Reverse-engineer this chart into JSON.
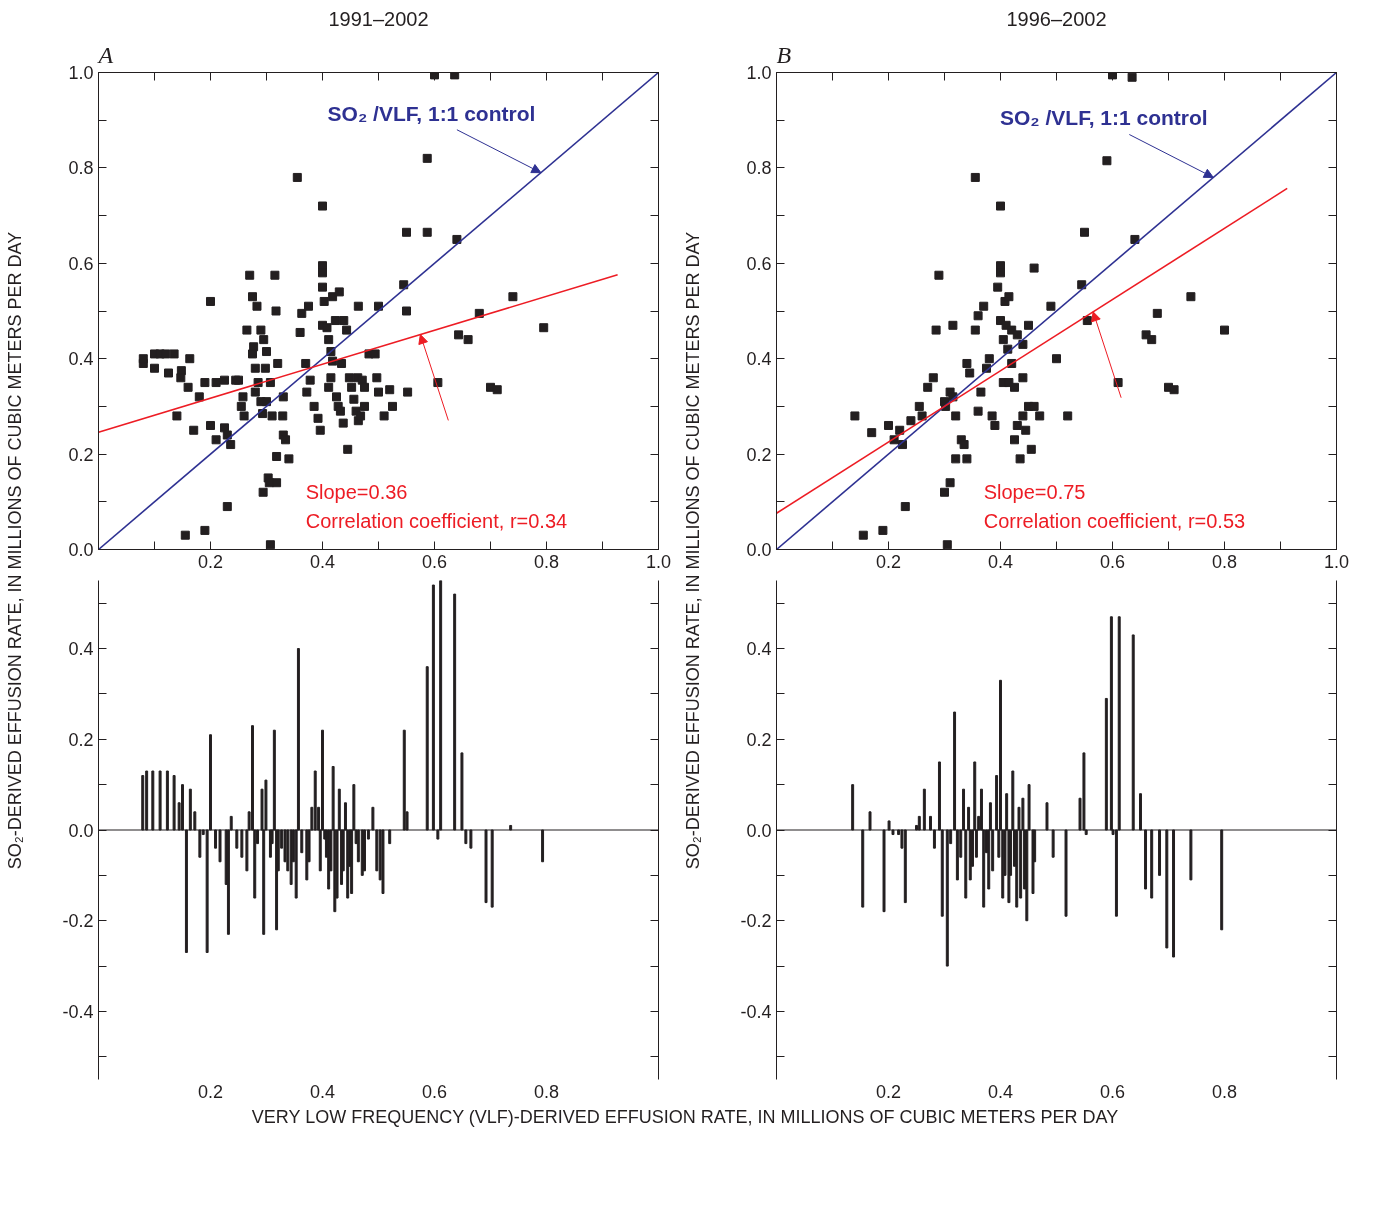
{
  "chart_data": [
    {
      "type": "scatter",
      "title": "1991–2002",
      "ylabel": "SO₂-DERIVED EFFUSION RATE, IN MILLIONS OF CUBIC METERS PER DAY",
      "grid": false,
      "xlim": [
        0,
        1
      ],
      "ylim": [
        0,
        1
      ],
      "xticks": [
        {
          "value": 0.1,
          "label": null
        },
        0.2,
        {
          "value": 0.3,
          "label": null
        },
        0.4,
        {
          "value": 0.5,
          "label": null
        },
        0.6,
        {
          "value": 0.7,
          "label": null
        },
        0.8,
        {
          "value": 0.9,
          "label": null
        },
        {
          "value": 1.0,
          "label": "1.0"
        }
      ],
      "yticks": [
        {
          "value": 0.0,
          "label": "0.0"
        },
        {
          "value": 0.1,
          "label": null
        },
        0.2,
        {
          "value": 0.3,
          "label": null
        },
        0.4,
        {
          "value": 0.5,
          "label": null
        },
        0.6,
        {
          "value": 0.7,
          "label": null
        },
        0.8,
        {
          "value": 0.9,
          "label": null
        },
        {
          "value": 1.0,
          "label": "1.0"
        }
      ],
      "annotations": [
        "A",
        {
          "text": "SO₂ /VLF, 1:1 control",
          "x": 0.79,
          "y": 0.79
        },
        "Slope=0.36",
        "Correlation coefficient, r=0.34"
      ],
      "series": [
        {
          "type": "scatter",
          "marker": "square",
          "color": "#231f20",
          "x": [
            0.08,
            0.08,
            0.1,
            0.11,
            0.12,
            0.135,
            0.1,
            0.125,
            0.148,
            0.163,
            0.147,
            0.16,
            0.14,
            0.17,
            0.18,
            0.19,
            0.2,
            0.2,
            0.21,
            0.21,
            0.225,
            0.225,
            0.23,
            0.236,
            0.23,
            0.19,
            0.155,
            0.245,
            0.25,
            0.255,
            0.26,
            0.258,
            0.265,
            0.27,
            0.275,
            0.277,
            0.275,
            0.28,
            0.285,
            0.28,
            0.29,
            0.293,
            0.283,
            0.29,
            0.295,
            0.3,
            0.298,
            0.307,
            0.3,
            0.31,
            0.315,
            0.317,
            0.32,
            0.33,
            0.329,
            0.33,
            0.334,
            0.34,
            0.318,
            0.294,
            0.303,
            0.305,
            0.318,
            0.307,
            0.355,
            0.36,
            0.363,
            0.375,
            0.37,
            0.378,
            0.372,
            0.385,
            0.392,
            0.396,
            0.4,
            0.4,
            0.4,
            0.4,
            0.403,
            0.4,
            0.408,
            0.411,
            0.415,
            0.418,
            0.415,
            0.411,
            0.425,
            0.428,
            0.432,
            0.437,
            0.445,
            0.418,
            0.423,
            0.43,
            0.438,
            0.443,
            0.434,
            0.448,
            0.452,
            0.456,
            0.46,
            0.464,
            0.464,
            0.463,
            0.471,
            0.475,
            0.475,
            0.468,
            0.483,
            0.494,
            0.497,
            0.5,
            0.52,
            0.51,
            0.55,
            0.552,
            0.525,
            0.587,
            0.606,
            0.587,
            0.643,
            0.66,
            0.68,
            0.7,
            0.712,
            0.74,
            0.795,
            0.6,
            0.636,
            0.64,
            0.55,
            0.545,
            0.5
          ],
          "values": [
            0.39,
            0.4,
            0.41,
            0.41,
            0.41,
            0.41,
            0.38,
            0.37,
            0.375,
            0.4,
            0.36,
            0.34,
            0.28,
            0.25,
            0.32,
            0.35,
            0.52,
            0.26,
            0.23,
            0.35,
            0.355,
            0.255,
            0.24,
            0.22,
            0.09,
            0.04,
            0.03,
            0.355,
            0.355,
            0.3,
            0.28,
            0.32,
            0.46,
            0.575,
            0.53,
            0.425,
            0.41,
            0.38,
            0.35,
            0.33,
            0.31,
            0.285,
            0.51,
            0.46,
            0.44,
            0.415,
            0.38,
            0.35,
            0.31,
            0.28,
            0.575,
            0.5,
            0.39,
            0.32,
            0.28,
            0.24,
            0.23,
            0.19,
            0.195,
            0.12,
            0.15,
            0.14,
            0.14,
            0.01,
            0.78,
            0.455,
            0.495,
            0.51,
            0.39,
            0.355,
            0.33,
            0.3,
            0.275,
            0.25,
            0.72,
            0.595,
            0.58,
            0.55,
            0.52,
            0.47,
            0.465,
            0.44,
            0.415,
            0.395,
            0.36,
            0.34,
            0.32,
            0.3,
            0.29,
            0.265,
            0.21,
            0.53,
            0.48,
            0.54,
            0.48,
            0.46,
            0.39,
            0.36,
            0.34,
            0.315,
            0.29,
            0.27,
            0.51,
            0.36,
            0.355,
            0.34,
            0.3,
            0.28,
            0.41,
            0.41,
            0.36,
            0.33,
            0.335,
            0.28,
            0.5,
            0.33,
            0.3,
            0.665,
            0.35,
            0.82,
            0.45,
            0.44,
            0.495,
            0.34,
            0.335,
            0.53,
            0.465,
            0.995,
            0.995,
            0.65,
            0.665,
            0.555,
            0.51
          ]
        },
        {
          "type": "line",
          "marker": "none",
          "color": "#2e3192",
          "x": [
            0,
            1
          ],
          "values": [
            0,
            1
          ]
        },
        {
          "type": "line",
          "marker": "none",
          "color": "#ed1c24",
          "x": [
            0,
            0.927
          ],
          "values": [
            0.246,
            0.576
          ]
        }
      ]
    },
    {
      "type": "bar",
      "xlabel": "VERY LOW FREQUENCY (VLF)-DERIVED EFFUSION RATE, IN MILLIONS OF CUBIC METERS PER DAY",
      "color": "#231f20",
      "grid": false,
      "xlim": [
        0,
        1
      ],
      "ylim": [
        -0.55,
        0.55
      ],
      "xticks": [
        0.2,
        0.4,
        0.6,
        0.8
      ],
      "yticks": [
        {
          "value": -0.5,
          "label": null
        },
        {
          "value": -0.4,
          "label": "-0.4"
        },
        {
          "value": -0.3,
          "label": null
        },
        {
          "value": -0.2,
          "label": "-0.2"
        },
        {
          "value": -0.1,
          "label": null
        },
        {
          "value": 0.0,
          "label": "0.0"
        },
        {
          "value": 0.1,
          "label": null
        },
        0.2,
        {
          "value": 0.3,
          "label": null
        },
        0.4,
        {
          "value": 0.5,
          "label": null
        }
      ],
      "ref_lines": [
        {
          "axis": "y",
          "value": 0,
          "label": null,
          "color": "#231f20"
        }
      ],
      "x": [
        0.079,
        0.086,
        0.097,
        0.11,
        0.123,
        0.135,
        0.144,
        0.15,
        0.157,
        0.164,
        0.172,
        0.181,
        0.187,
        0.194,
        0.2,
        0.209,
        0.217,
        0.228,
        0.232,
        0.237,
        0.247,
        0.256,
        0.265,
        0.269,
        0.275,
        0.279,
        0.284,
        0.292,
        0.295,
        0.299,
        0.307,
        0.31,
        0.314,
        0.318,
        0.321,
        0.327,
        0.333,
        0.338,
        0.344,
        0.348,
        0.353,
        0.357,
        0.363,
        0.372,
        0.376,
        0.381,
        0.387,
        0.393,
        0.396,
        0.4,
        0.404,
        0.407,
        0.411,
        0.415,
        0.419,
        0.422,
        0.426,
        0.43,
        0.434,
        0.437,
        0.441,
        0.445,
        0.449,
        0.452,
        0.456,
        0.46,
        0.464,
        0.471,
        0.475,
        0.482,
        0.49,
        0.497,
        0.503,
        0.508,
        0.52,
        0.546,
        0.551,
        0.587,
        0.598,
        0.606,
        0.611,
        0.636,
        0.649,
        0.656,
        0.665,
        0.692,
        0.703,
        0.736,
        0.793
      ],
      "values": [
        0.12,
        0.13,
        0.13,
        0.13,
        0.13,
        0.12,
        0.06,
        0.1,
        -0.27,
        0.09,
        0.04,
        -0.06,
        -0.01,
        -0.27,
        0.21,
        -0.04,
        -0.07,
        -0.12,
        -0.23,
        0.03,
        -0.04,
        -0.06,
        -0.09,
        0.04,
        0.23,
        -0.15,
        -0.03,
        0.09,
        -0.23,
        0.11,
        -0.06,
        -0.03,
        0.22,
        -0.22,
        -0.09,
        -0.04,
        -0.07,
        -0.09,
        -0.12,
        -0.07,
        -0.15,
        0.4,
        -0.05,
        -0.11,
        -0.07,
        0.05,
        0.13,
        0.05,
        -0.09,
        0.22,
        -0.02,
        -0.06,
        -0.13,
        -0.09,
        0.14,
        -0.18,
        -0.15,
        0.09,
        -0.12,
        -0.09,
        0.06,
        -0.15,
        -0.08,
        -0.14,
        0.1,
        -0.03,
        -0.07,
        -0.1,
        -0.09,
        -0.02,
        0.05,
        -0.09,
        -0.11,
        -0.14,
        -0.03,
        0.22,
        0.04,
        0.36,
        0.54,
        -0.02,
        0.55,
        0.52,
        0.17,
        -0.03,
        -0.04,
        -0.16,
        -0.17,
        0.01,
        -0.07
      ]
    },
    {
      "type": "scatter",
      "title": "1996–2002",
      "ylabel": "SO₂-DERIVED EFFUSION RATE, IN MILLIONS OF CUBIC METERS PER DAY",
      "grid": false,
      "xlim": [
        0,
        1
      ],
      "ylim": [
        0,
        1
      ],
      "xticks": [
        {
          "value": 0.1,
          "label": null
        },
        0.2,
        {
          "value": 0.3,
          "label": null
        },
        0.4,
        {
          "value": 0.5,
          "label": null
        },
        0.6,
        {
          "value": 0.7,
          "label": null
        },
        0.8,
        {
          "value": 0.9,
          "label": null
        },
        {
          "value": 1.0,
          "label": "1.0"
        }
      ],
      "yticks": [
        {
          "value": 0.0,
          "label": "0.0"
        },
        {
          "value": 0.1,
          "label": null
        },
        0.2,
        {
          "value": 0.3,
          "label": null
        },
        0.4,
        {
          "value": 0.5,
          "label": null
        },
        0.6,
        {
          "value": 0.7,
          "label": null
        },
        0.8,
        {
          "value": 0.9,
          "label": null
        },
        {
          "value": 1.0,
          "label": "1.0"
        }
      ],
      "annotations": [
        "B",
        {
          "text": "SO₂ /VLF, 1:1 control",
          "x": 0.78,
          "y": 0.78
        },
        "Slope=0.75",
        "Correlation coefficient, r=0.53"
      ],
      "series": [
        {
          "type": "scatter",
          "marker": "square",
          "color": "#231f20",
          "x": [
            0.14,
            0.17,
            0.155,
            0.19,
            0.2,
            0.21,
            0.22,
            0.225,
            0.23,
            0.24,
            0.26,
            0.255,
            0.27,
            0.28,
            0.285,
            0.29,
            0.3,
            0.302,
            0.3,
            0.305,
            0.31,
            0.315,
            0.31,
            0.315,
            0.32,
            0.32,
            0.33,
            0.335,
            0.34,
            0.34,
            0.345,
            0.355,
            0.355,
            0.36,
            0.36,
            0.365,
            0.37,
            0.375,
            0.38,
            0.385,
            0.39,
            0.395,
            0.4,
            0.4,
            0.4,
            0.4,
            0.405,
            0.405,
            0.408,
            0.41,
            0.413,
            0.415,
            0.415,
            0.42,
            0.42,
            0.425,
            0.425,
            0.43,
            0.43,
            0.435,
            0.44,
            0.44,
            0.44,
            0.445,
            0.45,
            0.45,
            0.455,
            0.46,
            0.46,
            0.47,
            0.49,
            0.5,
            0.52,
            0.545,
            0.55,
            0.555,
            0.59,
            0.6,
            0.61,
            0.635,
            0.64,
            0.66,
            0.67,
            0.68,
            0.7,
            0.71,
            0.74,
            0.8
          ],
          "values": [
            0.28,
            0.245,
            0.03,
            0.04,
            0.26,
            0.23,
            0.25,
            0.22,
            0.09,
            0.27,
            0.28,
            0.3,
            0.34,
            0.36,
            0.46,
            0.575,
            0.31,
            0.3,
            0.12,
            0.01,
            0.14,
            0.47,
            0.33,
            0.32,
            0.28,
            0.19,
            0.23,
            0.22,
            0.19,
            0.39,
            0.37,
            0.78,
            0.46,
            0.49,
            0.29,
            0.33,
            0.51,
            0.38,
            0.4,
            0.28,
            0.26,
            0.55,
            0.72,
            0.595,
            0.58,
            0.48,
            0.44,
            0.35,
            0.52,
            0.47,
            0.42,
            0.53,
            0.35,
            0.46,
            0.39,
            0.34,
            0.23,
            0.45,
            0.26,
            0.19,
            0.43,
            0.36,
            0.28,
            0.25,
            0.47,
            0.3,
            0.21,
            0.59,
            0.3,
            0.28,
            0.51,
            0.4,
            0.28,
            0.555,
            0.665,
            0.48,
            0.815,
            0.995,
            0.35,
            0.99,
            0.65,
            0.45,
            0.44,
            0.495,
            0.34,
            0.335,
            0.53,
            0.46
          ]
        },
        {
          "type": "line",
          "marker": "none",
          "color": "#2e3192",
          "x": [
            0,
            1
          ],
          "values": [
            0,
            1
          ]
        },
        {
          "type": "line",
          "marker": "none",
          "color": "#ed1c24",
          "x": [
            0,
            0.912
          ],
          "values": [
            0.076,
            0.757
          ]
        }
      ]
    },
    {
      "type": "bar",
      "color": "#231f20",
      "grid": false,
      "xlim": [
        0,
        1
      ],
      "ylim": [
        -0.55,
        0.55
      ],
      "xticks": [
        0.2,
        0.4,
        0.6,
        0.8
      ],
      "yticks": [
        {
          "value": -0.5,
          "label": null
        },
        {
          "value": -0.4,
          "label": "-0.4"
        },
        {
          "value": -0.3,
          "label": null
        },
        {
          "value": -0.2,
          "label": "-0.2"
        },
        {
          "value": -0.1,
          "label": null
        },
        {
          "value": 0.0,
          "label": "0.0"
        },
        {
          "value": 0.1,
          "label": null
        },
        0.2,
        {
          "value": 0.3,
          "label": null
        },
        0.4,
        {
          "value": 0.5,
          "label": null
        }
      ],
      "ref_lines": [
        {
          "axis": "y",
          "value": 0,
          "label": null,
          "color": "#231f20"
        }
      ],
      "x": [
        0.136,
        0.154,
        0.167,
        0.192,
        0.201,
        0.208,
        0.218,
        0.224,
        0.23,
        0.25,
        0.255,
        0.264,
        0.275,
        0.282,
        0.291,
        0.296,
        0.305,
        0.311,
        0.318,
        0.323,
        0.329,
        0.334,
        0.338,
        0.343,
        0.346,
        0.35,
        0.354,
        0.357,
        0.361,
        0.366,
        0.37,
        0.375,
        0.379,
        0.382,
        0.386,
        0.393,
        0.397,
        0.4,
        0.404,
        0.408,
        0.411,
        0.415,
        0.418,
        0.422,
        0.425,
        0.429,
        0.433,
        0.436,
        0.44,
        0.443,
        0.447,
        0.451,
        0.458,
        0.461,
        0.483,
        0.494,
        0.517,
        0.542,
        0.549,
        0.553,
        0.589,
        0.598,
        0.601,
        0.607,
        0.612,
        0.637,
        0.65,
        0.659,
        0.67,
        0.684,
        0.697,
        0.709,
        0.74,
        0.795
      ],
      "values": [
        0.1,
        -0.17,
        0.04,
        -0.18,
        0.02,
        -0.01,
        -0.01,
        -0.04,
        -0.16,
        0.01,
        0.03,
        0.09,
        0.03,
        -0.04,
        0.15,
        -0.19,
        -0.3,
        -0.03,
        0.26,
        -0.11,
        -0.06,
        0.09,
        -0.15,
        0.05,
        -0.11,
        -0.08,
        0.15,
        -0.06,
        0.03,
        0.09,
        -0.17,
        -0.05,
        -0.13,
        0.06,
        -0.09,
        0.12,
        -0.06,
        0.33,
        -0.15,
        -0.1,
        0.08,
        -0.16,
        -0.1,
        0.13,
        -0.08,
        -0.17,
        0.05,
        -0.15,
        0.07,
        -0.13,
        -0.2,
        0.1,
        -0.14,
        -0.07,
        0.06,
        -0.06,
        -0.19,
        0.07,
        0.17,
        -0.01,
        0.29,
        0.47,
        -0.01,
        -0.19,
        0.47,
        0.43,
        0.08,
        -0.13,
        -0.15,
        -0.1,
        -0.26,
        -0.28,
        -0.11,
        -0.22
      ]
    }
  ]
}
